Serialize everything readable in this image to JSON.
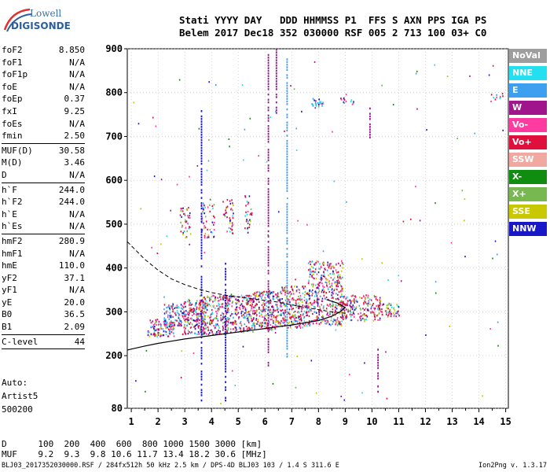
{
  "logo": {
    "line1": "Lowell",
    "line2": "DIGISONDE"
  },
  "header": {
    "labels": [
      "Stati",
      "YYYY",
      "DAY",
      "DDD",
      "HHMMSS",
      "P1",
      "FFS",
      "S",
      "AXN",
      "PPS",
      "IGA",
      "PS"
    ],
    "values": [
      "Belem",
      "2017",
      "Dec18",
      "352",
      "030000",
      "RSF",
      "005",
      "2",
      "713",
      "100",
      "03+",
      "C0"
    ]
  },
  "params": [
    {
      "name": "foF2",
      "value": "8.850"
    },
    {
      "name": "foF1",
      "value": "N/A"
    },
    {
      "name": "foF1p",
      "value": "N/A"
    },
    {
      "name": "foE",
      "value": "N/A"
    },
    {
      "name": "foEp",
      "value": "0.37"
    },
    {
      "name": "fxI",
      "value": "9.25"
    },
    {
      "name": "foEs",
      "value": "N/A"
    },
    {
      "name": "fmin",
      "value": "2.50"
    },
    {
      "sep": true
    },
    {
      "name": "MUF(D)",
      "value": "30.58"
    },
    {
      "name": "M(D)",
      "value": "3.46"
    },
    {
      "name": "D",
      "value": "N/A"
    },
    {
      "sep": true
    },
    {
      "name": "h`F",
      "value": "244.0"
    },
    {
      "name": "h`F2",
      "value": "244.0"
    },
    {
      "name": "h`E",
      "value": "N/A"
    },
    {
      "name": "h`Es",
      "value": "N/A"
    },
    {
      "sep": true
    },
    {
      "name": "hmF2",
      "value": "280.9"
    },
    {
      "name": "hmF1",
      "value": "N/A"
    },
    {
      "name": "hmE",
      "value": "110.0"
    },
    {
      "name": "yF2",
      "value": "37.1"
    },
    {
      "name": "yF1",
      "value": "N/A"
    },
    {
      "name": "yE",
      "value": "20.0"
    },
    {
      "name": "B0",
      "value": "36.5"
    },
    {
      "name": "B1",
      "value": "2.09"
    },
    {
      "sep": true
    },
    {
      "name": "C-level",
      "value": "44"
    },
    {
      "sep": true
    }
  ],
  "auto": {
    "line1": "Auto:",
    "line2": "Artist5",
    "line3": "500200"
  },
  "legend": [
    {
      "label": "NoVal",
      "color": "#9e9e9e"
    },
    {
      "label": "NNE",
      "color": "#22e0f0"
    },
    {
      "label": "E",
      "color": "#3d9ff0"
    },
    {
      "label": "W",
      "color": "#a0148c"
    },
    {
      "label": "Vo-",
      "color": "#ff3aa0"
    },
    {
      "label": "Vo+",
      "color": "#e0103c"
    },
    {
      "label": "SSW",
      "color": "#f0a8a0"
    },
    {
      "label": "X-",
      "color": "#108c10"
    },
    {
      "label": "X+",
      "color": "#78b850"
    },
    {
      "label": "SSE",
      "color": "#c8c800"
    },
    {
      "label": "NNW",
      "color": "#1818c8"
    }
  ],
  "chart_data": {
    "type": "scatter",
    "xlim": [
      0.85,
      15.1
    ],
    "ylim": [
      80,
      900
    ],
    "x_ticks": [
      1,
      2,
      3,
      4,
      5,
      6,
      7,
      8,
      9,
      10,
      11,
      12,
      13,
      14,
      15
    ],
    "y_ticks": [
      80,
      200,
      300,
      400,
      500,
      600,
      700,
      800,
      900
    ],
    "grid": true,
    "dashed_trace": [
      [
        0.85,
        460
      ],
      [
        1.5,
        420
      ],
      [
        2,
        395
      ],
      [
        2.5,
        375
      ],
      [
        3,
        362
      ],
      [
        3.5,
        352
      ],
      [
        4,
        344
      ],
      [
        4.5,
        338
      ],
      [
        5,
        334
      ],
      [
        5.5,
        330
      ],
      [
        6,
        326
      ],
      [
        6.5,
        322
      ],
      [
        7,
        316
      ],
      [
        7.5,
        310
      ],
      [
        8,
        305
      ],
      [
        8.5,
        300
      ],
      [
        9,
        297
      ]
    ],
    "solid_trace": [
      [
        0.85,
        213
      ],
      [
        1.5,
        222
      ],
      [
        2,
        228
      ],
      [
        2.5,
        233
      ],
      [
        3,
        238
      ],
      [
        3.5,
        242
      ],
      [
        4,
        246
      ],
      [
        4.5,
        250
      ],
      [
        5,
        254
      ],
      [
        5.5,
        258
      ],
      [
        6,
        262
      ],
      [
        6.5,
        266
      ],
      [
        7,
        270
      ],
      [
        7.5,
        275
      ],
      [
        8,
        280
      ],
      [
        8.5,
        290
      ],
      [
        8.8,
        300
      ],
      [
        9,
        310
      ],
      [
        8.7,
        320
      ],
      [
        8.3,
        328
      ]
    ],
    "clusters": [
      {
        "x": [
          1.6,
          2.6
        ],
        "y": [
          245,
          285
        ],
        "n": 120,
        "mix": "red"
      },
      {
        "x": [
          2.2,
          2.9
        ],
        "y": [
          270,
          320
        ],
        "n": 80,
        "mix": "blue"
      },
      {
        "x": [
          2.9,
          3.8
        ],
        "y": [
          250,
          330
        ],
        "n": 200,
        "mix": "red"
      },
      {
        "x": [
          3.5,
          4.6
        ],
        "y": [
          250,
          340
        ],
        "n": 220,
        "mix": "red"
      },
      {
        "x": [
          4.5,
          5.6
        ],
        "y": [
          255,
          340
        ],
        "n": 220,
        "mix": "red"
      },
      {
        "x": [
          5.5,
          6.5
        ],
        "y": [
          260,
          350
        ],
        "n": 220,
        "mix": "red"
      },
      {
        "x": [
          6.5,
          7.6
        ],
        "y": [
          265,
          360
        ],
        "n": 240,
        "mix": "red"
      },
      {
        "x": [
          7.6,
          8.9
        ],
        "y": [
          270,
          420
        ],
        "n": 380,
        "mix": "red"
      },
      {
        "x": [
          8.8,
          10.3
        ],
        "y": [
          280,
          340
        ],
        "n": 200,
        "mix": "red"
      },
      {
        "x": [
          10.3,
          11.0
        ],
        "y": [
          290,
          320
        ],
        "n": 50,
        "mix": "red"
      },
      {
        "x": [
          2.8,
          3.2
        ],
        "y": [
          470,
          540
        ],
        "n": 40,
        "mix": "red"
      },
      {
        "x": [
          3.6,
          4.1
        ],
        "y": [
          470,
          550
        ],
        "n": 50,
        "mix": "red"
      },
      {
        "x": [
          4.4,
          4.8
        ],
        "y": [
          480,
          560
        ],
        "n": 40,
        "mix": "red"
      },
      {
        "x": [
          5.2,
          5.5
        ],
        "y": [
          480,
          570
        ],
        "n": 30,
        "mix": "red"
      },
      {
        "x": [
          7.7,
          8.2
        ],
        "y": [
          770,
          790
        ],
        "n": 20,
        "mix": "blue"
      },
      {
        "x": [
          8.8,
          9.3
        ],
        "y": [
          775,
          790
        ],
        "n": 14,
        "mix": "blue"
      },
      {
        "x": [
          14.4,
          14.9
        ],
        "y": [
          780,
          800
        ],
        "n": 10,
        "mix": "blue"
      }
    ],
    "vertical_streaks": [
      {
        "x": 6.1,
        "y": [
          180,
          890
        ],
        "color": "#a0148c"
      },
      {
        "x": 6.4,
        "y": [
          750,
          900
        ],
        "color": "#a0148c"
      },
      {
        "x": 6.8,
        "y": [
          200,
          880
        ],
        "color": "#3d9ff0"
      },
      {
        "x": 3.6,
        "y": [
          100,
          760
        ],
        "color": "#1818c8"
      },
      {
        "x": 4.5,
        "y": [
          100,
          420
        ],
        "color": "#1818c8"
      },
      {
        "x": 9.9,
        "y": [
          700,
          770
        ],
        "color": "#a0148c"
      },
      {
        "x": 10.2,
        "y": [
          120,
          220
        ],
        "color": "#a0148c"
      }
    ]
  },
  "conversion": {
    "d_label": "D",
    "d_values": "100  200  400  600  800 1000 1500 3000 [km]",
    "muf_label": "MUF",
    "muf_values": "9.2  9.3  9.8 10.6 11.7 13.4 18.2 30.6 [MHz]"
  },
  "footer": "BLJ03_2017352030000.RSF / 284fx512h 50 kHz 2.5 km / DPS-4D BLJ03 103 / 1.4 S 311.6 E",
  "version": "Ion2Png v. 1.3.17"
}
